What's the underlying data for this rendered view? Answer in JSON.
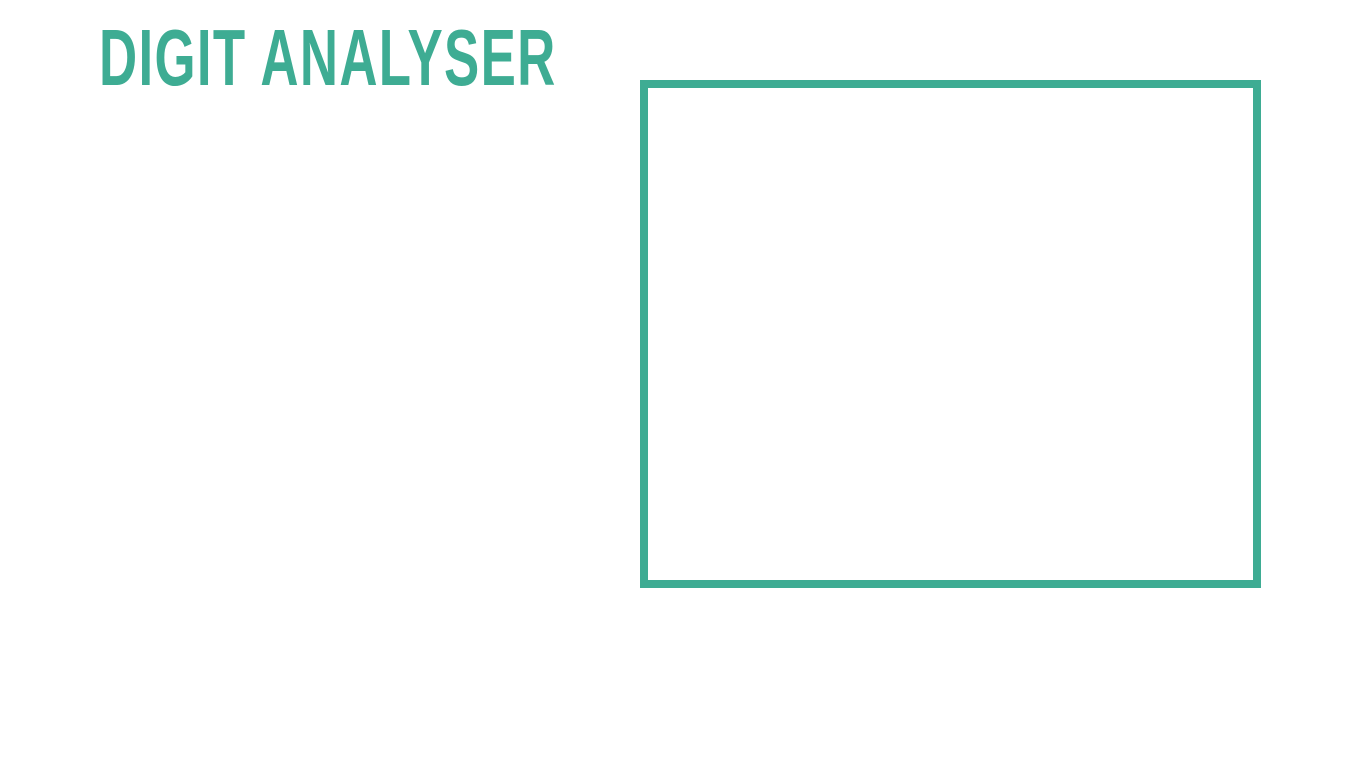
{
  "header": {
    "title": "DIGIT ANALYSER"
  },
  "colors": {
    "accent": "#3eac93",
    "background": "#ffffff"
  },
  "canvas": {
    "kind": "drawing-area"
  }
}
